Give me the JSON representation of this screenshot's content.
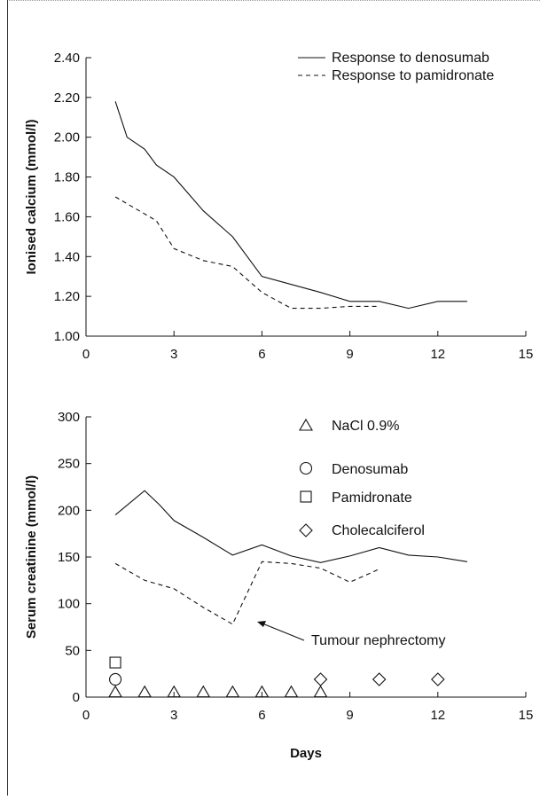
{
  "chart_data": [
    {
      "type": "line",
      "title": "",
      "xlabel": "",
      "ylabel": "Ionised calcium (mmol/l)",
      "xlim": [
        0,
        15
      ],
      "ylim": [
        1.0,
        2.4
      ],
      "xticks": [
        "0",
        "3",
        "6",
        "9",
        "12",
        "15"
      ],
      "yticks": [
        "1.00",
        "1.20",
        "1.40",
        "1.60",
        "1.80",
        "2.00",
        "2.20",
        "2.40"
      ],
      "grid": false,
      "legend_position": "top-right",
      "series": [
        {
          "name": "Response to denosumab",
          "line_style": "solid",
          "x": [
            1,
            1.4,
            2,
            2.4,
            3,
            4,
            5,
            6,
            7,
            8,
            9,
            10,
            11,
            12,
            13
          ],
          "y": [
            2.18,
            2.0,
            1.94,
            1.86,
            1.8,
            1.63,
            1.5,
            1.3,
            1.26,
            1.22,
            1.175,
            1.175,
            1.14,
            1.175,
            1.175
          ]
        },
        {
          "name": "Response to pamidronate",
          "line_style": "dashed",
          "x": [
            1,
            2.4,
            3,
            4,
            5,
            6,
            7,
            8,
            9,
            10
          ],
          "y": [
            1.7,
            1.58,
            1.44,
            1.38,
            1.35,
            1.22,
            1.14,
            1.14,
            1.15,
            1.15
          ]
        }
      ]
    },
    {
      "type": "line",
      "title": "",
      "xlabel": "Days",
      "ylabel": "Serum creatinine (mmol/l)",
      "xlim": [
        0,
        15
      ],
      "ylim": [
        0,
        300
      ],
      "xticks": [
        "0",
        "3",
        "6",
        "9",
        "12",
        "15"
      ],
      "yticks": [
        "0",
        "50",
        "100",
        "150",
        "200",
        "250",
        "300"
      ],
      "grid": false,
      "legend_position": "top-right",
      "series": [
        {
          "name": "",
          "line_style": "solid",
          "x": [
            1,
            2,
            2.5,
            3,
            4,
            5,
            6,
            7,
            8,
            9,
            10,
            11,
            12,
            13
          ],
          "y": [
            195,
            221,
            206,
            189,
            171,
            152,
            163,
            151,
            144,
            151,
            160,
            152,
            150,
            145
          ]
        },
        {
          "name": "",
          "line_style": "dashed",
          "x": [
            1,
            2,
            3,
            4,
            5,
            6,
            7,
            8,
            9,
            10
          ],
          "y": [
            143,
            125,
            116,
            96,
            78,
            145,
            143,
            138,
            123,
            137
          ]
        }
      ],
      "markers": [
        {
          "name": "NaCl 0.9%",
          "shape": "triangle",
          "x": [
            1,
            2,
            3,
            4,
            5,
            6,
            7,
            8
          ],
          "y": [
            6,
            6,
            6,
            6,
            6,
            6,
            6,
            6
          ]
        },
        {
          "name": "Denosumab",
          "shape": "circle",
          "x": [
            1
          ],
          "y": [
            19
          ]
        },
        {
          "name": "Pamidronate",
          "shape": "square",
          "x": [
            1
          ],
          "y": [
            37
          ]
        },
        {
          "name": "Cholecalciferol",
          "shape": "diamond",
          "x": [
            8,
            10,
            12
          ],
          "y": [
            19,
            19,
            19
          ]
        }
      ],
      "annotations": [
        {
          "text": "Tumour nephrectomy",
          "arrow_to_x": 5.9,
          "arrow_to_y": 110
        }
      ]
    }
  ]
}
